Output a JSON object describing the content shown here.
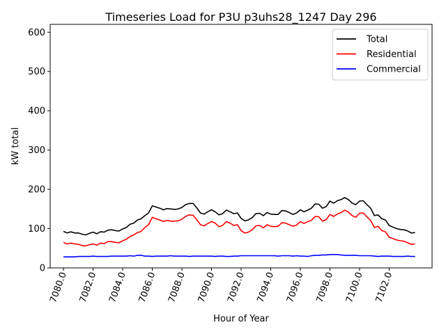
{
  "chart_data": {
    "type": "line",
    "title": "Timeseries Load for P3U p3uhs28_1247  Day 296",
    "xlabel": "Hour of Year",
    "ylabel": "kW total",
    "xlim": [
      7079.1,
      7104.9
    ],
    "ylim": [
      0,
      620
    ],
    "x_ticks": [
      7080.0,
      7082.0,
      7084.0,
      7086.0,
      7088.0,
      7090.0,
      7092.0,
      7094.0,
      7096.0,
      7098.0,
      7100.0,
      7102.0
    ],
    "x_tick_labels": [
      "7080.0",
      "7082.0",
      "7084.0",
      "7086.0",
      "7088.0",
      "7090.0",
      "7092.0",
      "7094.0",
      "7096.0",
      "7098.0",
      "7100.0",
      "7102.0"
    ],
    "y_ticks": [
      0,
      100,
      200,
      300,
      400,
      500,
      600
    ],
    "y_tick_labels": [
      "0",
      "100",
      "200",
      "300",
      "400",
      "500",
      "600"
    ],
    "legend_position": "top-right",
    "x": [
      7080.0,
      7080.25,
      7080.5,
      7080.75,
      7081.0,
      7081.25,
      7081.5,
      7081.75,
      7082.0,
      7082.25,
      7082.5,
      7082.75,
      7083.0,
      7083.25,
      7083.5,
      7083.75,
      7084.0,
      7084.25,
      7084.5,
      7084.75,
      7085.0,
      7085.25,
      7085.5,
      7085.75,
      7086.0,
      7086.25,
      7086.5,
      7086.75,
      7087.0,
      7087.25,
      7087.5,
      7087.75,
      7088.0,
      7088.25,
      7088.5,
      7088.75,
      7089.0,
      7089.25,
      7089.5,
      7089.75,
      7090.0,
      7090.25,
      7090.5,
      7090.75,
      7091.0,
      7091.25,
      7091.5,
      7091.75,
      7092.0,
      7092.25,
      7092.5,
      7092.75,
      7093.0,
      7093.25,
      7093.5,
      7093.75,
      7094.0,
      7094.25,
      7094.5,
      7094.75,
      7095.0,
      7095.25,
      7095.5,
      7095.75,
      7096.0,
      7096.25,
      7096.5,
      7096.75,
      7097.0,
      7097.25,
      7097.5,
      7097.75,
      7098.0,
      7098.25,
      7098.5,
      7098.75,
      7099.0,
      7099.25,
      7099.5,
      7099.75,
      7100.0,
      7100.25,
      7100.5,
      7100.75,
      7101.0,
      7101.25,
      7101.5,
      7101.75,
      7102.0,
      7102.25,
      7102.5,
      7102.75,
      7103.0,
      7103.25,
      7103.5,
      7103.75
    ],
    "series": [
      {
        "name": "Total",
        "color": "#000000",
        "values": [
          93,
          89,
          92,
          89,
          89,
          86,
          84,
          88,
          91,
          87,
          92,
          91,
          96,
          97,
          95,
          94,
          99,
          103,
          111,
          114,
          122,
          125,
          133,
          140,
          158,
          155,
          152,
          148,
          151,
          150,
          149,
          150,
          154,
          161,
          164,
          164,
          153,
          140,
          137,
          143,
          148,
          143,
          135,
          138,
          147,
          143,
          138,
          140,
          126,
          120,
          122,
          128,
          138,
          139,
          133,
          141,
          137,
          136,
          136,
          146,
          145,
          141,
          136,
          140,
          148,
          143,
          147,
          152,
          163,
          162,
          152,
          156,
          170,
          165,
          171,
          174,
          179,
          174,
          165,
          161,
          170,
          171,
          161,
          152,
          133,
          135,
          125,
          122,
          108,
          104,
          100,
          98,
          97,
          94,
          89,
          90
        ]
      },
      {
        "name": "Residential",
        "color": "#ff0000",
        "values": [
          65,
          61,
          63,
          61,
          60,
          57,
          56,
          59,
          61,
          58,
          63,
          62,
          67,
          67,
          65,
          64,
          69,
          73,
          80,
          84,
          90,
          93,
          103,
          110,
          129,
          125,
          122,
          118,
          121,
          119,
          119,
          120,
          124,
          131,
          135,
          134,
          123,
          110,
          107,
          113,
          118,
          114,
          105,
          108,
          118,
          114,
          108,
          110,
          95,
          89,
          91,
          97,
          107,
          108,
          102,
          110,
          106,
          105,
          106,
          115,
          114,
          110,
          106,
          109,
          118,
          113,
          118,
          121,
          131,
          130,
          119,
          123,
          136,
          131,
          137,
          141,
          147,
          142,
          133,
          129,
          139,
          140,
          130,
          121,
          103,
          106,
          95,
          92,
          78,
          75,
          71,
          69,
          68,
          64,
          60,
          61
        ]
      },
      {
        "name": "Commercial",
        "color": "#0000ff",
        "values": [
          28,
          28,
          28,
          28,
          29,
          29,
          29,
          29,
          30,
          29,
          29,
          29,
          29,
          30,
          30,
          30,
          30,
          30,
          31,
          30,
          32,
          32,
          30,
          30,
          29,
          30,
          30,
          30,
          30,
          31,
          30,
          30,
          30,
          30,
          29,
          30,
          30,
          30,
          30,
          30,
          30,
          29,
          30,
          30,
          29,
          29,
          30,
          30,
          31,
          31,
          31,
          31,
          31,
          31,
          31,
          31,
          31,
          31,
          30,
          31,
          31,
          31,
          30,
          31,
          30,
          30,
          29,
          31,
          32,
          32,
          33,
          33,
          34,
          34,
          34,
          33,
          32,
          32,
          32,
          32,
          31,
          31,
          31,
          31,
          30,
          29,
          30,
          30,
          30,
          29,
          29,
          29,
          29,
          30,
          29,
          29
        ]
      }
    ]
  }
}
